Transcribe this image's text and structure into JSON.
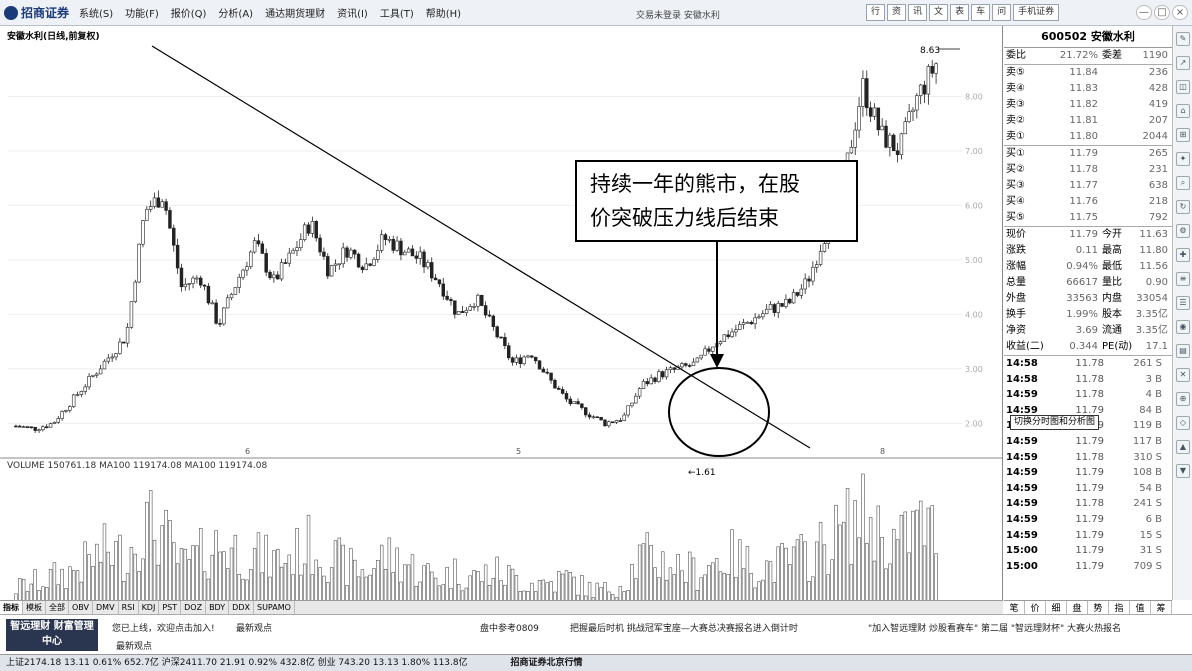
{
  "menubar": {
    "app_name": "招商证券",
    "menus": [
      "系统(S)",
      "功能(F)",
      "报价(Q)",
      "分析(A)",
      "通达期货理财",
      "资讯(I)",
      "工具(T)",
      "帮助(H)"
    ],
    "title": "交易未登录 安徽水利",
    "quick_tabs": [
      "行",
      "资",
      "讯",
      "文",
      "表",
      "车",
      "问",
      "手机证券"
    ],
    "window_controls": [
      "—",
      "□",
      "×"
    ]
  },
  "chart": {
    "title": "安徽水利(日线,前复权)",
    "high_label": "8.63",
    "low_label": "1.61",
    "volume_header": "VOLUME 150761.18 MA100 119174.08 MA100 119174.08",
    "month_marks": [
      "6",
      "5",
      "8"
    ],
    "y_ticks": [
      "8.00",
      "7.00",
      "6.00",
      "5.00",
      "4.00",
      "3.00",
      "2.00"
    ],
    "annotation_line1": "持续一年的熊市，在股",
    "annotation_line2": "价突破压力线后结束",
    "colors": {
      "candle": "#222222",
      "trendline": "#000000",
      "volume": "#333333"
    }
  },
  "chart_data": {
    "type": "candlestick",
    "title": "安徽水利(日线,前复权)",
    "price_high": 8.63,
    "price_low": 1.61,
    "close_profile": [
      1.95,
      1.9,
      2.0,
      2.4,
      2.8,
      3.2,
      3.6,
      5.9,
      6.2,
      4.5,
      4.7,
      3.8,
      4.6,
      5.3,
      4.6,
      5.1,
      5.7,
      4.8,
      5.2,
      4.9,
      5.4,
      5.2,
      5.0,
      4.6,
      4.0,
      4.3,
      3.7,
      3.1,
      3.3,
      2.8,
      2.4,
      2.2,
      2.0,
      2.1,
      2.7,
      2.9,
      3.0,
      3.1,
      3.5,
      3.7,
      3.9,
      4.1,
      4.2,
      4.6,
      5.5,
      6.5,
      8.2,
      7.3,
      7.0,
      8.0,
      8.6
    ],
    "volume_profile": [
      0.2,
      0.25,
      0.3,
      0.35,
      0.45,
      0.55,
      0.5,
      0.8,
      0.7,
      0.4,
      0.5,
      0.6,
      0.55,
      0.5,
      0.45,
      0.5,
      0.6,
      0.5,
      0.4,
      0.35,
      0.5,
      0.45,
      0.35,
      0.3,
      0.35,
      0.3,
      0.35,
      0.3,
      0.25,
      0.25,
      0.3,
      0.2,
      0.18,
      0.25,
      0.5,
      0.45,
      0.4,
      0.35,
      0.45,
      0.5,
      0.4,
      0.4,
      0.45,
      0.5,
      0.6,
      0.75,
      0.9,
      0.7,
      0.6,
      0.8,
      0.7
    ]
  },
  "quote": {
    "header": "600502 安徽水利",
    "weibi_label": "委比",
    "weibi": "21.72%",
    "weicha_label": "委差",
    "weicha": "1190",
    "asks": [
      [
        "卖⑤",
        "11.84",
        "236"
      ],
      [
        "卖④",
        "11.83",
        "428"
      ],
      [
        "卖③",
        "11.82",
        "419"
      ],
      [
        "卖②",
        "11.81",
        "207"
      ],
      [
        "卖①",
        "11.80",
        "2044"
      ]
    ],
    "bids": [
      [
        "买①",
        "11.79",
        "265"
      ],
      [
        "买②",
        "11.78",
        "231"
      ],
      [
        "买③",
        "11.77",
        "638"
      ],
      [
        "买④",
        "11.76",
        "218"
      ],
      [
        "买⑤",
        "11.75",
        "792"
      ]
    ],
    "stats": [
      [
        "现价",
        "11.79",
        "今开",
        "11.63"
      ],
      [
        "涨跌",
        "0.11",
        "最高",
        "11.80"
      ],
      [
        "涨幅",
        "0.94%",
        "最低",
        "11.56"
      ],
      [
        "总量",
        "66617",
        "量比",
        "0.90"
      ],
      [
        "外盘",
        "33563",
        "内盘",
        "33054"
      ],
      [
        "换手",
        "1.99%",
        "股本",
        "3.35亿"
      ],
      [
        "净资",
        "3.69",
        "流通",
        "3.35亿"
      ],
      [
        "收益(二)",
        "0.344",
        "PE(动)",
        "17.1"
      ]
    ],
    "ticks": [
      [
        "14:58",
        "11.78",
        "261 S"
      ],
      [
        "14:58",
        "11.78",
        "3 B"
      ],
      [
        "14:59",
        "11.78",
        "4 B"
      ],
      [
        "14:59",
        "11.79",
        "84 B"
      ],
      [
        "14:59",
        "11.79",
        "119 B"
      ],
      [
        "14:59",
        "11.79",
        "117 B"
      ],
      [
        "14:59",
        "11.78",
        "310 S"
      ],
      [
        "14:59",
        "11.79",
        "108 B"
      ],
      [
        "14:59",
        "11.79",
        "54 B"
      ],
      [
        "14:59",
        "11.78",
        "241 S"
      ],
      [
        "14:59",
        "11.79",
        "6 B"
      ],
      [
        "14:59",
        "11.79",
        "15 S"
      ],
      [
        "15:00",
        "11.79",
        "31 S"
      ],
      [
        "15:00",
        "11.79",
        "709 S"
      ]
    ],
    "switch_tip": "切换分时图和分析图",
    "tabs": [
      "笔",
      "价",
      "细",
      "盘",
      "势",
      "指",
      "值",
      "筹"
    ],
    "day_line": "日线"
  },
  "indicator_tabs": [
    "指标",
    "模板",
    "全部",
    "OBV",
    "DMV",
    "RSI",
    "KDJ",
    "PST",
    "DOZ",
    "BDY",
    "DDX",
    "SUPAMO"
  ],
  "infobar": {
    "brand": "智远理财 财富管理中心",
    "welcome": "您已上线，欢迎点击加入!",
    "hint": "最新观点",
    "hint2": "最新观点",
    "center": "盘中参考0809",
    "promo": "把握最后时机 挑战冠军宝座—大赛总决赛报名进入倒计时",
    "promo2": "\"加入智远理财 炒股看赛车\" 第二届 \"智远理财杯\" 大赛火热报名"
  },
  "statusbar": {
    "text": "上证2174.18  13.11  0.61%  652.7亿 沪深2411.70  21.91  0.92%  432.8亿 创业 743.20  13.13  1.80%  113.8亿",
    "broker": "招商证券北京行情"
  }
}
